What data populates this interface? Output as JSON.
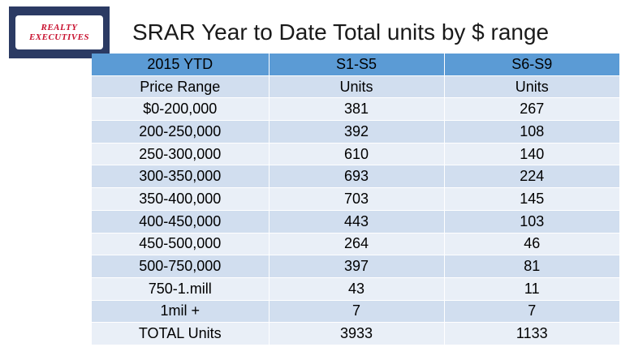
{
  "logo": {
    "line1": "REALTY",
    "line2": "EXECUTIVES"
  },
  "title": "SRAR Year to Date Total units by $ range",
  "table": {
    "headers": [
      "2015 YTD",
      "S1-S5",
      "S6-S9"
    ],
    "rows": [
      [
        "Price Range",
        "Units",
        "Units"
      ],
      [
        "$0-200,000",
        "381",
        "267"
      ],
      [
        "200-250,000",
        "392",
        "108"
      ],
      [
        "250-300,000",
        "610",
        "140"
      ],
      [
        "300-350,000",
        "693",
        "224"
      ],
      [
        "350-400,000",
        "703",
        "145"
      ],
      [
        "400-450,000",
        "443",
        "103"
      ],
      [
        "450-500,000",
        "264",
        "46"
      ],
      [
        "500-750,000",
        "397",
        "81"
      ],
      [
        "750-1.mill",
        "43",
        "11"
      ],
      [
        "1mil +",
        "7",
        "7"
      ],
      [
        "TOTAL Units",
        "3933",
        "1133"
      ]
    ]
  },
  "colors": {
    "header_bg": "#5b9bd5",
    "row_dark": "#d1deef",
    "row_light": "#e9eff7",
    "logo_bg": "#2b3a63",
    "logo_text": "#c8102e"
  }
}
